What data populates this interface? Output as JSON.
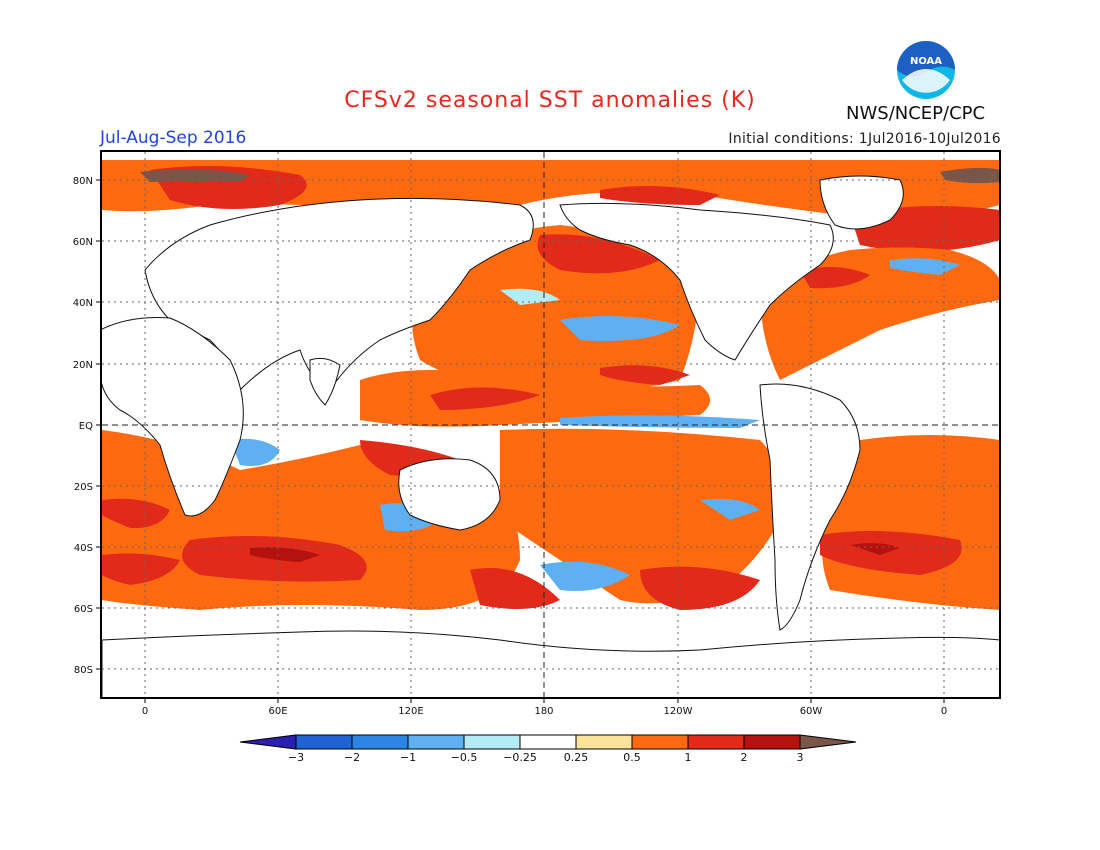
{
  "header": {
    "title": "CFSv2 seasonal SST anomalies (K)",
    "period": "Jul-Aug-Sep 2016",
    "initial_conditions": "Initial conditions: 1Jul2016-10Jul2016",
    "agency": "NWS/NCEP/CPC",
    "logo_text": "NOAA"
  },
  "map": {
    "lat_labels": [
      "80N",
      "60N",
      "40N",
      "20N",
      "EQ",
      "20S",
      "40S",
      "60S",
      "80S"
    ],
    "lon_labels": [
      "0",
      "60E",
      "120E",
      "180",
      "120W",
      "60W",
      "0"
    ]
  },
  "colorbar": {
    "labels": [
      "-3",
      "-2",
      "-1",
      "-0.5",
      "-0.25",
      "0.25",
      "0.5",
      "1",
      "2",
      "3"
    ],
    "colors": [
      "#2a1fb0",
      "#1e62d6",
      "#2c85e6",
      "#5fb0f2",
      "#b4ecf5",
      "#ffffff",
      "#fbe39a",
      "#ff6a10",
      "#e22a1a",
      "#b5120e",
      "#7a5548"
    ]
  },
  "colors": {
    "title": "#e8281e",
    "period": "#2244dd",
    "noaa_blue": "#1e5fc3",
    "noaa_cyan": "#10b6e6"
  }
}
